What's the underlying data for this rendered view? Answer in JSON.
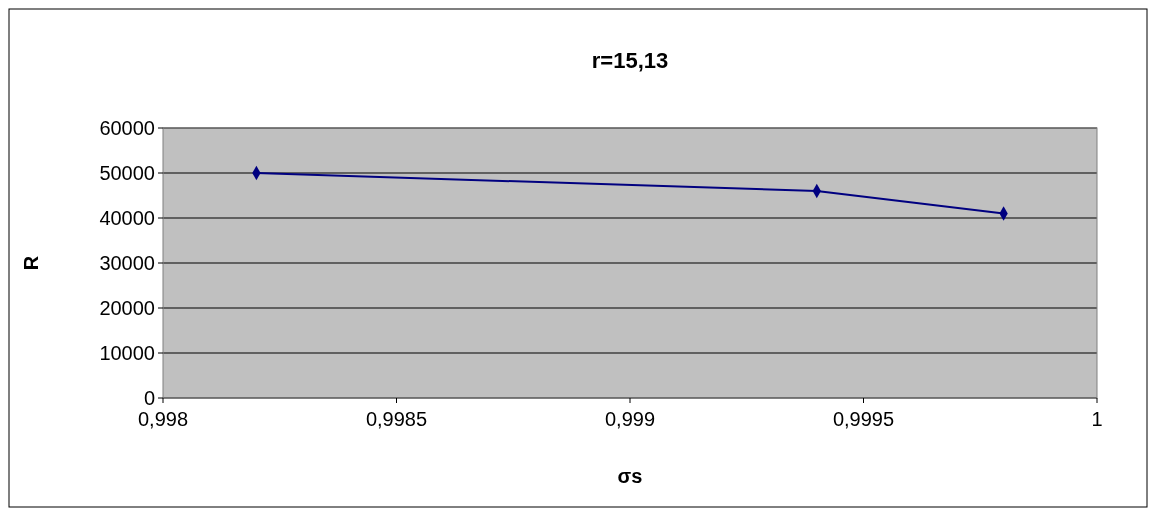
{
  "chart_data": {
    "type": "line",
    "title": "r=15,13",
    "xlabel": "σs",
    "ylabel": "R",
    "x": [
      0.9982,
      0.9994,
      0.9998
    ],
    "series": [
      {
        "color": "#000080",
        "values": [
          50000,
          46000,
          41000
        ]
      }
    ],
    "xlim": [
      0.998,
      1
    ],
    "xticks": [
      {
        "value": 0.998,
        "label": "0,998"
      },
      {
        "value": 0.9985,
        "label": "0,9985"
      },
      {
        "value": 0.999,
        "label": "0,999"
      },
      {
        "value": 0.9995,
        "label": "0,9995"
      },
      {
        "value": 1,
        "label": "1"
      }
    ],
    "ylim": [
      0,
      60000
    ],
    "yticks": [
      0,
      10000,
      20000,
      30000,
      40000,
      50000,
      60000
    ],
    "grid": "y",
    "marker": "diamond",
    "line_style": "solid"
  }
}
